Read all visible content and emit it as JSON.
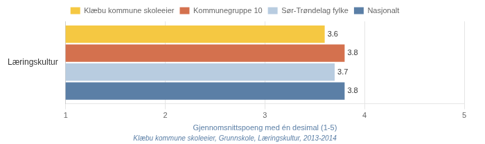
{
  "chart_data": {
    "type": "bar",
    "orientation": "horizontal",
    "categories": [
      "Læringskultur"
    ],
    "series": [
      {
        "name": "Klæbu kommune skoleeier",
        "color": "#F5C842",
        "values": [
          3.6
        ]
      },
      {
        "name": "Kommunegruppe 10",
        "color": "#D4714E",
        "values": [
          3.8
        ]
      },
      {
        "name": "Sør-Trøndelag fylke",
        "color": "#B8CCE0",
        "values": [
          3.7
        ]
      },
      {
        "name": "Nasjonalt",
        "color": "#5B7FA6",
        "values": [
          3.8
        ]
      }
    ],
    "xlim": [
      1,
      5
    ],
    "xticks": [
      1,
      2,
      3,
      4,
      5
    ],
    "xlabel": "Gjennomsnittspoeng med én desimal (1-5)",
    "annotations": [
      "Klæbu kommune skoleeier, Grunnskole, Læringskultur, 2013-2014"
    ],
    "grid": true,
    "legend": "top",
    "data_labels": true
  }
}
